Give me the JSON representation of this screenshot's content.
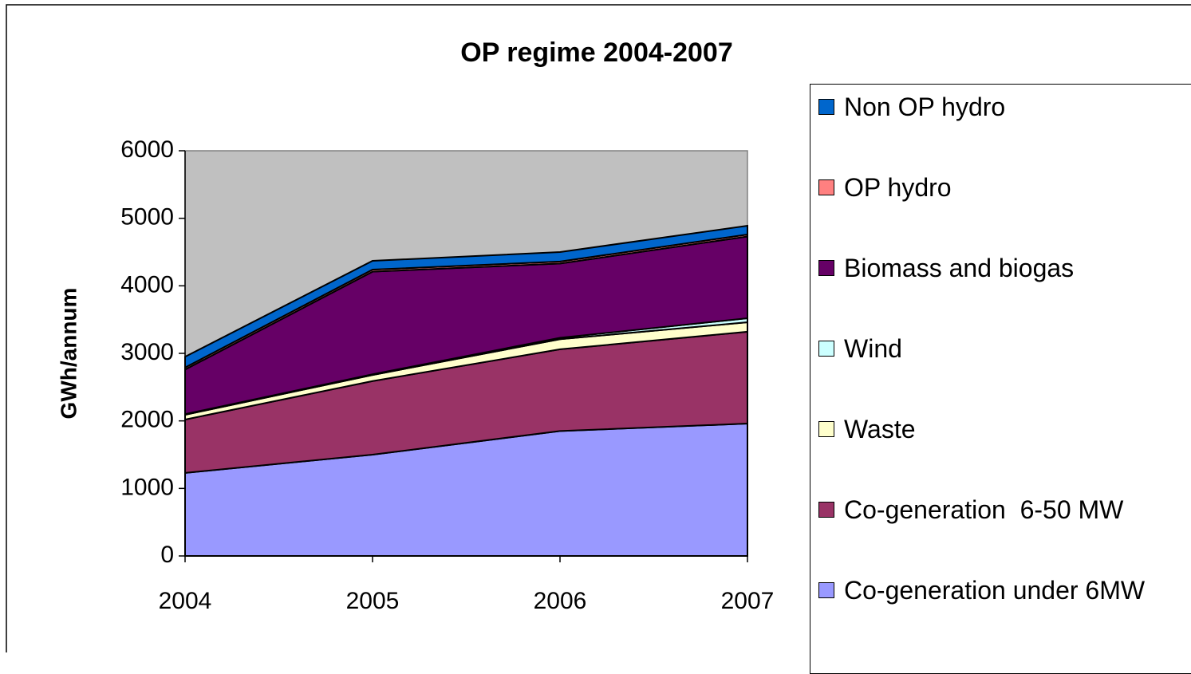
{
  "chart_data": {
    "type": "stacked_area",
    "title": "OP regime 2004-2007",
    "y_label": "GWh/annum",
    "categories": [
      "2004",
      "2005",
      "2006",
      "2007"
    ],
    "series": [
      {
        "name": "Co-generation under 6MW",
        "color": "#9999ff",
        "values": [
          1230,
          1500,
          1850,
          1960
        ]
      },
      {
        "name": "Co-generation  6-50 MW",
        "color": "#993366",
        "values": [
          790,
          1090,
          1210,
          1360
        ]
      },
      {
        "name": "Waste",
        "color": "#ffffcc",
        "values": [
          70,
          90,
          150,
          140
        ]
      },
      {
        "name": "Wind",
        "color": "#ccffff",
        "values": [
          10,
          10,
          20,
          60
        ]
      },
      {
        "name": "Biomass and biogas",
        "color": "#660066",
        "values": [
          660,
          1520,
          1100,
          1210
        ]
      },
      {
        "name": "OP hydro",
        "color": "#ff8080",
        "values": [
          30,
          30,
          30,
          30
        ]
      },
      {
        "name": "Non OP hydro",
        "color": "#0066cc",
        "values": [
          160,
          130,
          140,
          130
        ]
      }
    ],
    "ylim": [
      0,
      6000
    ],
    "yticks": [
      0,
      1000,
      2000,
      3000,
      4000,
      5000,
      6000
    ],
    "plot_background": "#c0c0c0"
  }
}
